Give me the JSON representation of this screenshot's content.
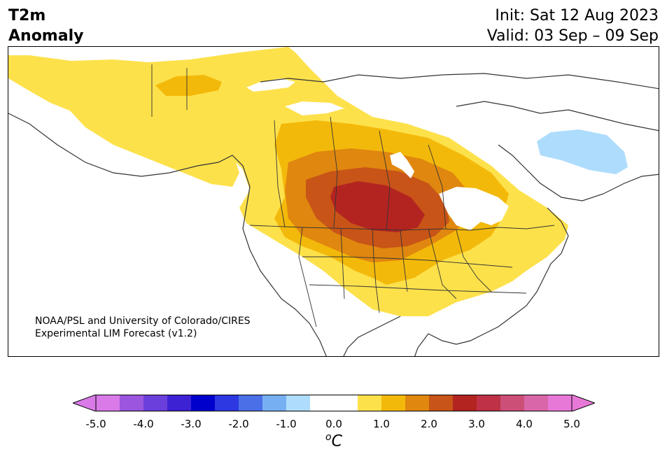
{
  "header": {
    "variable": "T2m",
    "metric": "Anomaly",
    "init": "Init: Sat 12 Aug 2023",
    "valid": "Valid: 03 Sep – 09 Sep"
  },
  "credit": {
    "line1": "NOAA/PSL and University of Colorado/CIRES",
    "line2": "Experimental LIM Forecast (v1.2)"
  },
  "map": {
    "region": "North America",
    "projection": "conic",
    "boundaries": [
      "coastlines",
      "country borders",
      "US state borders",
      "Canadian province borders",
      "Great Lakes"
    ],
    "anomaly_features": [
      {
        "sign": "warm",
        "peak_c": 3.0,
        "location": "central Great Plains / South Dakota, Nebraska, Minnesota"
      },
      {
        "sign": "warm",
        "level_c": 0.5,
        "location": "western Canada, Alaska interior and central US"
      },
      {
        "sign": "cool",
        "level_c": -1.0,
        "location": "northern Quebec / Labrador"
      }
    ]
  },
  "colorbar": {
    "unit": "C",
    "unit_prefix": "o",
    "extend": "both",
    "ticks": [
      "-5.0",
      "-4.0",
      "-3.0",
      "-2.0",
      "-1.0",
      "0.0",
      "1.0",
      "2.0",
      "3.0",
      "4.0",
      "5.0"
    ],
    "bins": [
      {
        "range": [
          -5.0,
          -4.5
        ],
        "color": "#d97ae8"
      },
      {
        "range": [
          -4.5,
          -4.0
        ],
        "color": "#9b55de"
      },
      {
        "range": [
          -4.0,
          -3.5
        ],
        "color": "#6b3fdc"
      },
      {
        "range": [
          -3.5,
          -3.0
        ],
        "color": "#3d22d4"
      },
      {
        "range": [
          -3.0,
          -2.5
        ],
        "color": "#0000cd"
      },
      {
        "range": [
          -2.5,
          -2.0
        ],
        "color": "#2d38e2"
      },
      {
        "range": [
          -2.0,
          -1.5
        ],
        "color": "#4a6fe6"
      },
      {
        "range": [
          -1.5,
          -1.0
        ],
        "color": "#77b0f2"
      },
      {
        "range": [
          -1.0,
          -0.5
        ],
        "color": "#aedcfc"
      },
      {
        "range": [
          -0.5,
          0.0
        ],
        "color": "#ffffff"
      },
      {
        "range": [
          0.0,
          0.5
        ],
        "color": "#ffffff"
      },
      {
        "range": [
          0.5,
          1.0
        ],
        "color": "#fde14b"
      },
      {
        "range": [
          1.0,
          1.5
        ],
        "color": "#f3b90a"
      },
      {
        "range": [
          1.5,
          2.0
        ],
        "color": "#e0870f"
      },
      {
        "range": [
          2.0,
          2.5
        ],
        "color": "#c85417"
      },
      {
        "range": [
          2.5,
          3.0
        ],
        "color": "#b32421"
      },
      {
        "range": [
          3.0,
          3.5
        ],
        "color": "#be3146"
      },
      {
        "range": [
          3.5,
          4.0
        ],
        "color": "#cc4f77"
      },
      {
        "range": [
          4.0,
          4.5
        ],
        "color": "#d967a8"
      },
      {
        "range": [
          4.5,
          5.0
        ],
        "color": "#e878d8"
      }
    ],
    "under_color": "#d97ae8",
    "over_color": "#e878d8"
  }
}
